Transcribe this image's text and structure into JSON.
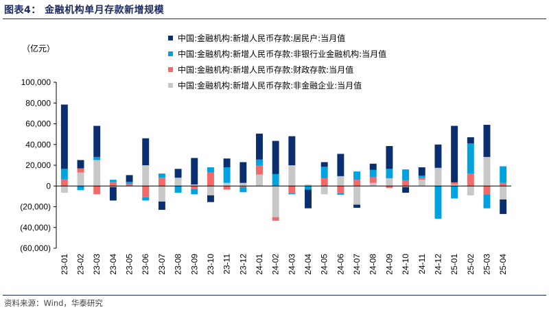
{
  "title": "图表4： 金融机构单月存款新增规模",
  "unit_label": "（亿元）",
  "source": "资料来源：Wind，华泰研究",
  "colors": {
    "household": "#0b2f6e",
    "nonbank": "#00a3e0",
    "fiscal": "#f26a6a",
    "corporate": "#c8c8c8"
  },
  "chart_data": {
    "type": "bar",
    "stacked": true,
    "title": "金融机构单月存款新增规模",
    "xlabel": "",
    "ylabel": "（亿元）",
    "ylim": [
      -60000,
      100000
    ],
    "yticks": [
      100000,
      80000,
      60000,
      40000,
      20000,
      0,
      -20000,
      -40000,
      -60000
    ],
    "ytick_labels": [
      "100,000",
      "80,000",
      "60,000",
      "40,000",
      "20,000",
      "0",
      "(20,000)",
      "(40,000)",
      "(60,000)"
    ],
    "categories": [
      "23-01",
      "23-02",
      "23-03",
      "23-04",
      "23-05",
      "23-06",
      "23-07",
      "23-08",
      "23-09",
      "23-10",
      "23-11",
      "23-12",
      "24-01",
      "24-02",
      "24-03",
      "24-04",
      "24-05",
      "24-06",
      "24-07",
      "24-08",
      "24-09",
      "24-10",
      "24-11",
      "24-12",
      "25-01",
      "25-02",
      "25-03",
      "25-04"
    ],
    "series": [
      {
        "name": "中国:金融机构:新增人民币存款:非金融企业:当月值",
        "key": "corporate",
        "values": [
          -6500,
          13000,
          25000,
          -1000,
          0,
          20000,
          -15000,
          8000,
          1500,
          -9000,
          3000,
          3000,
          11000,
          -30000,
          20000,
          1500,
          -8000,
          9500,
          -18000,
          3000,
          7500,
          -1000,
          6000,
          17500,
          1500,
          -9000,
          28000,
          -13000
        ]
      },
      {
        "name": "中国:金融机构:新增人民币存款:财政存款:当月值",
        "key": "fiscal",
        "values": [
          6500,
          4000,
          -8000,
          4000,
          2000,
          -11000,
          8000,
          0,
          -3000,
          13000,
          -3500,
          -1000,
          8500,
          -3500,
          -7000,
          0,
          7500,
          -7000,
          6000,
          5500,
          -2000,
          5500,
          2000,
          0,
          2000,
          12000,
          -8000,
          3000
        ]
      },
      {
        "name": "中国:金融机构:新增人民币存款:非银行业金融机构:当月值",
        "key": "nonbank",
        "values": [
          10000,
          -4000,
          3000,
          2000,
          2000,
          -3000,
          4000,
          -6500,
          -5000,
          5000,
          15000,
          -5000,
          6000,
          11500,
          -1000,
          -3500,
          11000,
          -1500,
          8000,
          7000,
          9000,
          10500,
          2000,
          -31500,
          -12000,
          29000,
          -13500,
          16000
        ]
      },
      {
        "name": "中国:金融机构:新增人民币存款:居民户:当月值",
        "key": "household",
        "values": [
          62000,
          8000,
          30000,
          -13000,
          6500,
          26000,
          -8000,
          8500,
          25500,
          -6500,
          8500,
          20000,
          25000,
          32000,
          28000,
          -18000,
          4500,
          21500,
          -3000,
          6000,
          22000,
          -5500,
          8000,
          22500,
          54500,
          6000,
          31000,
          -14000
        ]
      }
    ],
    "legend": [
      {
        "label": "中国:金融机构:新增人民币存款:居民户:当月值",
        "key": "household"
      },
      {
        "label": "中国:金融机构:新增人民币存款:非银行业金融机构:当月值",
        "key": "nonbank"
      },
      {
        "label": "中国:金融机构:新增人民币存款:财政存款:当月值",
        "key": "fiscal"
      },
      {
        "label": "中国:金融机构:新增人民币存款:非金融企业:当月值",
        "key": "corporate"
      }
    ],
    "legend_position": "top-right",
    "grid": false
  }
}
